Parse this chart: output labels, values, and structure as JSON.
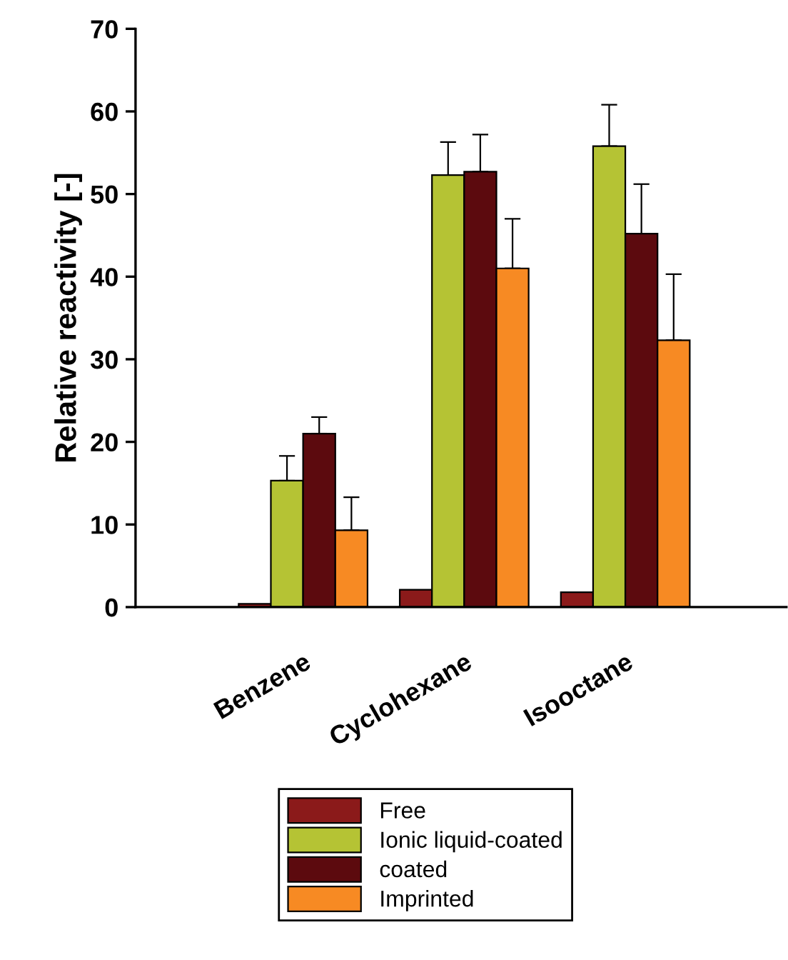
{
  "chart_data": {
    "type": "bar",
    "ylabel": "Relative reactivity [-]",
    "categories": [
      "Benzene",
      "Cyclohexane",
      "Isooctane"
    ],
    "series": [
      {
        "name": "Free",
        "color": "#8b1a1a",
        "values": [
          0.4,
          2.1,
          1.8
        ],
        "errors": [
          null,
          null,
          null
        ]
      },
      {
        "name": "Ionic liquid-coated",
        "color": "#b5c334",
        "values": [
          15.3,
          52.3,
          55.8
        ],
        "errors": [
          [
            15.3,
            18.3
          ],
          [
            52.3,
            56.3
          ],
          [
            55.8,
            60.8
          ]
        ]
      },
      {
        "name": "coated",
        "color": "#5c0a0e",
        "values": [
          21,
          52.7,
          45.2
        ],
        "errors": [
          [
            21,
            23
          ],
          [
            52.7,
            57.2
          ],
          [
            45.2,
            51.2
          ]
        ]
      },
      {
        "name": "Imprinted",
        "color": "#f78a23",
        "values": [
          9.3,
          41,
          32.3
        ],
        "errors": [
          [
            9.3,
            13.3
          ],
          [
            41,
            47
          ],
          [
            32.3,
            40.3
          ]
        ]
      }
    ],
    "ylim": [
      0,
      70
    ],
    "yticks": [
      0,
      10,
      20,
      30,
      40,
      50,
      60,
      70
    ],
    "grid": false,
    "legend": "bottom"
  }
}
